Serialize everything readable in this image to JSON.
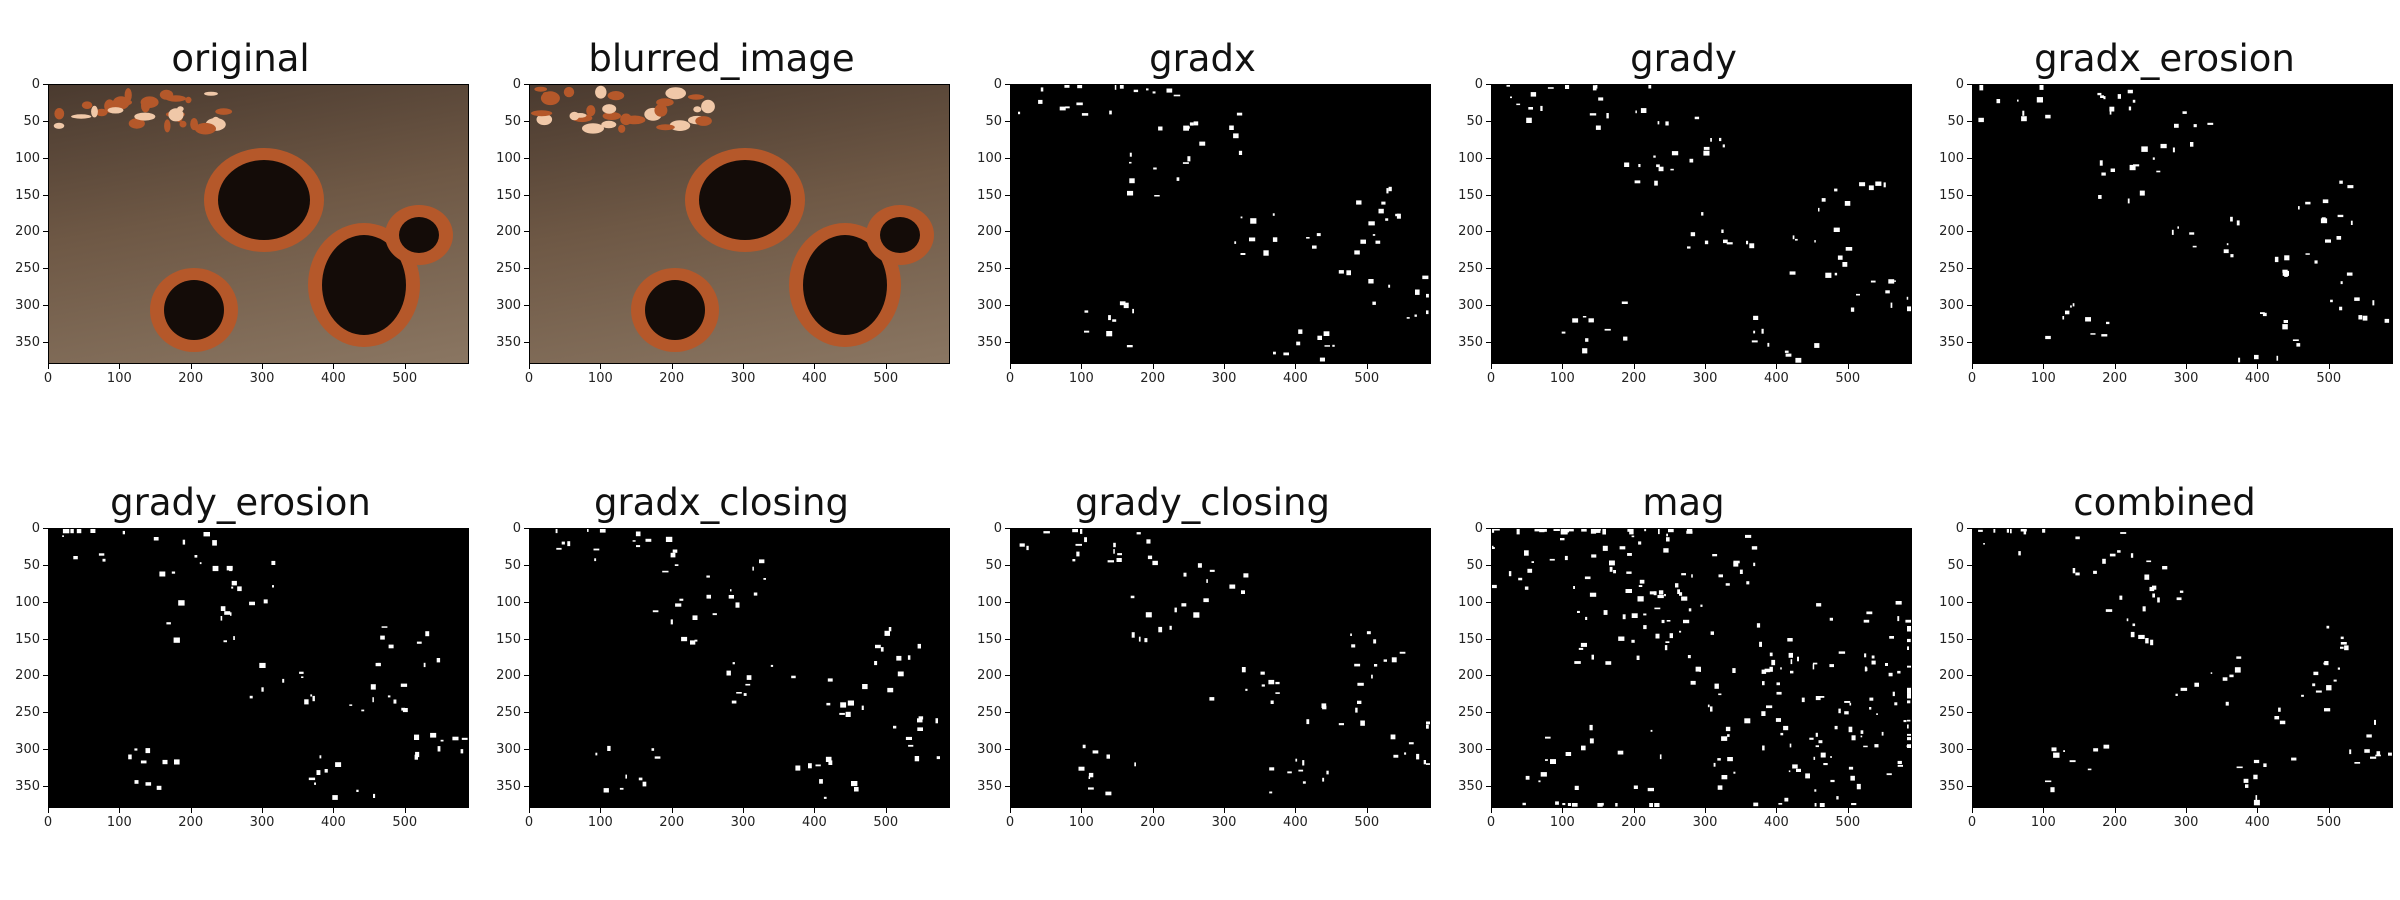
{
  "figure": {
    "panels": [
      {
        "title": "original",
        "kind": "photo"
      },
      {
        "title": "blurred_image",
        "kind": "photo"
      },
      {
        "title": "gradx",
        "kind": "binary"
      },
      {
        "title": "grady",
        "kind": "binary"
      },
      {
        "title": "gradx_erosion",
        "kind": "binary"
      },
      {
        "title": "grady_erosion",
        "kind": "binary"
      },
      {
        "title": "gradx_closing",
        "kind": "binary"
      },
      {
        "title": "grady_closing",
        "kind": "binary"
      },
      {
        "title": "mag",
        "kind": "binary"
      },
      {
        "title": "combined",
        "kind": "binary"
      }
    ],
    "x_ticks": [
      "0",
      "100",
      "200",
      "300",
      "400",
      "500"
    ],
    "y_ticks": [
      "0",
      "50",
      "100",
      "150",
      "200",
      "250",
      "300",
      "350"
    ],
    "image_width": 590,
    "image_height": 380,
    "colors": {
      "background": "#000000",
      "edges": "#ffffff",
      "rust": "#b5582a",
      "metal": "#7a6553"
    }
  }
}
